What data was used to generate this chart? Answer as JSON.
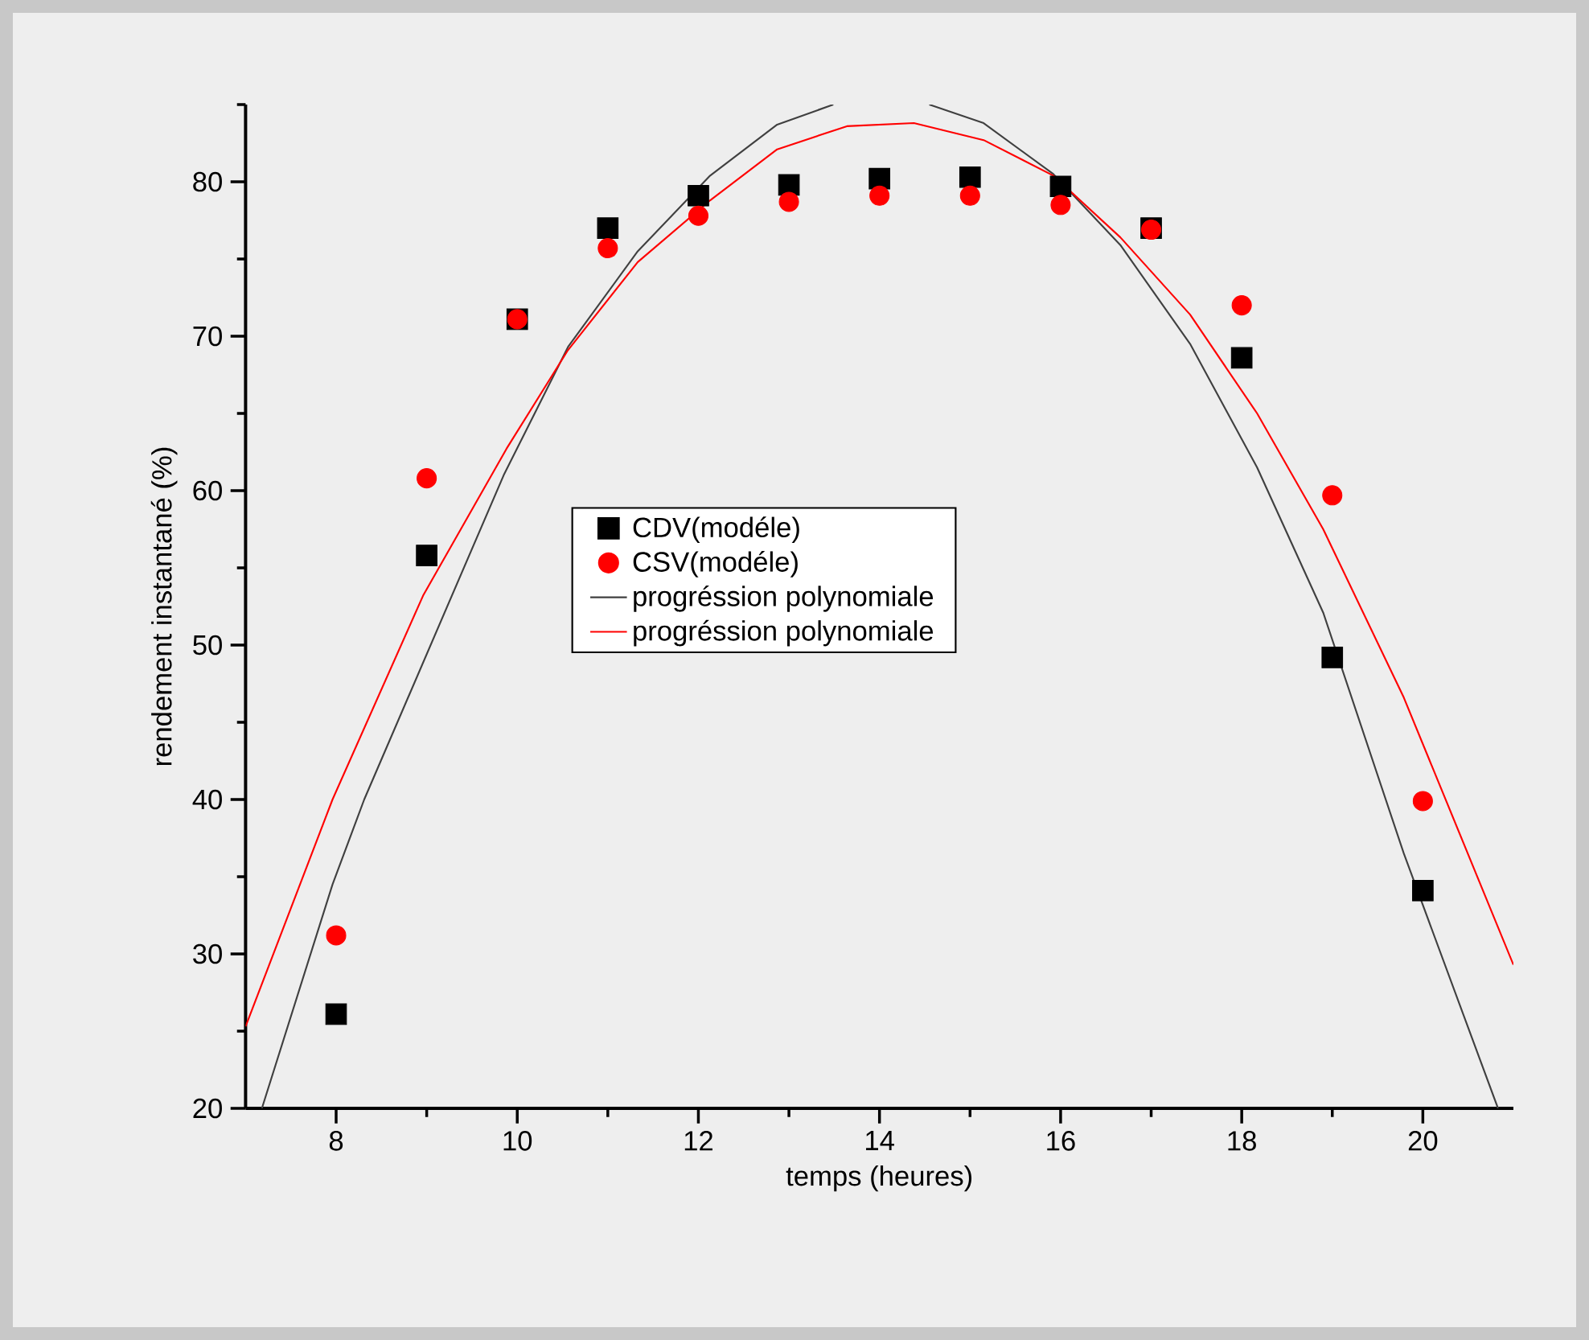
{
  "chart_data": {
    "type": "scatter",
    "xlabel": "temps (heures)",
    "ylabel": "rendement instantané (%)",
    "x": [
      8,
      9,
      10,
      11,
      12,
      13,
      14,
      15,
      16,
      17,
      18,
      19,
      20
    ],
    "series": [
      {
        "name": "CDV(modéle)",
        "marker": "square",
        "color": "#000000",
        "values": [
          26.1,
          55.8,
          71.1,
          77.0,
          79.1,
          79.8,
          80.2,
          80.3,
          79.7,
          77.0,
          68.6,
          49.2,
          34.1
        ]
      },
      {
        "name": "CSV(modéle)",
        "marker": "circle",
        "color": "#ff0000",
        "values": [
          31.2,
          60.8,
          71.1,
          75.7,
          77.8,
          78.7,
          79.1,
          79.1,
          78.5,
          76.9,
          72.0,
          59.7,
          39.9
        ]
      },
      {
        "name": "progréssion polynomiale",
        "type": "line",
        "marker": "none",
        "color": "#404040",
        "x": [
          7.18,
          7.96,
          8.31,
          9.85,
          10.56,
          11.33,
          12.13,
          12.87,
          13.49,
          14.0,
          14.55,
          15.15,
          15.92,
          16.66,
          17.43,
          18.17,
          18.9,
          19.79,
          20.83
        ],
        "values": [
          20,
          34.5,
          40.0,
          61.0,
          69.3,
          75.5,
          80.4,
          83.7,
          85.0,
          null,
          85.0,
          83.8,
          80.5,
          75.9,
          69.5,
          61.5,
          52.1,
          36.5,
          20
        ]
      },
      {
        "name": "progréssion polynomiale",
        "type": "line",
        "marker": "none",
        "color": "#ff0000",
        "x": [
          7.0,
          7.96,
          8.96,
          9.88,
          10.56,
          11.33,
          12.13,
          12.87,
          13.64,
          14.38,
          15.15,
          15.92,
          16.66,
          17.43,
          18.17,
          18.9,
          19.79,
          21.0
        ],
        "values": [
          25.3,
          40.0,
          53.2,
          62.7,
          69.1,
          74.8,
          78.8,
          82.1,
          83.6,
          83.8,
          82.7,
          80.4,
          76.4,
          71.4,
          65.0,
          57.5,
          46.6,
          29.3
        ]
      }
    ],
    "xlim": [
      7,
      21
    ],
    "ylim": [
      20,
      85
    ],
    "xticks": [
      8,
      {
        "value": 9,
        "label": null
      },
      10,
      {
        "value": 11,
        "label": null
      },
      12,
      {
        "value": 13,
        "label": null
      },
      14,
      {
        "value": 15,
        "label": null
      },
      16,
      {
        "value": 17,
        "label": null
      },
      18,
      {
        "value": 19,
        "label": null
      },
      20
    ],
    "yticks": [
      20,
      {
        "value": 25,
        "label": null
      },
      30,
      {
        "value": 35,
        "label": null
      },
      40,
      {
        "value": 45,
        "label": null
      },
      50,
      {
        "value": 55,
        "label": null
      },
      60,
      {
        "value": 65,
        "label": null
      },
      70,
      {
        "value": 75,
        "label": null
      },
      80,
      {
        "value": 85,
        "label": null
      }
    ],
    "grid": false,
    "legend": "center"
  }
}
